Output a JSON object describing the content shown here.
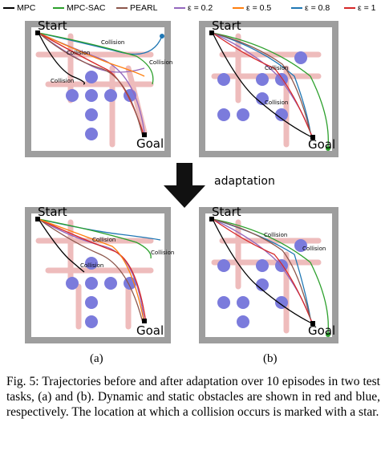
{
  "legend": [
    {
      "label": "MPC",
      "color": "#000000"
    },
    {
      "label": "MPC-SAC",
      "color": "#2ca02c"
    },
    {
      "label": "PEARL",
      "color": "#8c564b"
    },
    {
      "label": "ε = 0.2",
      "color": "#9467bd"
    },
    {
      "label": "ε = 0.5",
      "color": "#ff7f0e"
    },
    {
      "label": "ε = 0.8",
      "color": "#1f77b4"
    },
    {
      "label": "ε = 1",
      "color": "#d62728"
    }
  ],
  "panels": {
    "start": "Start",
    "goal": "Goal",
    "collision": "Collision"
  },
  "adaptation": "adaptation",
  "subfig": [
    "(a)",
    "(b)"
  ],
  "caption": "Fig. 5: Trajectories before and after adaptation over 10 episodes in two test tasks, (a) and (b). Dynamic and static obstacles are shown in red and blue, respectively. The location at which a collision occurs is marked with a star.",
  "colors": {
    "wall": "#9e9e9e",
    "static_obstacle": "#7b7bdc",
    "dynamic_obstacle": "#e8a0a0"
  }
}
